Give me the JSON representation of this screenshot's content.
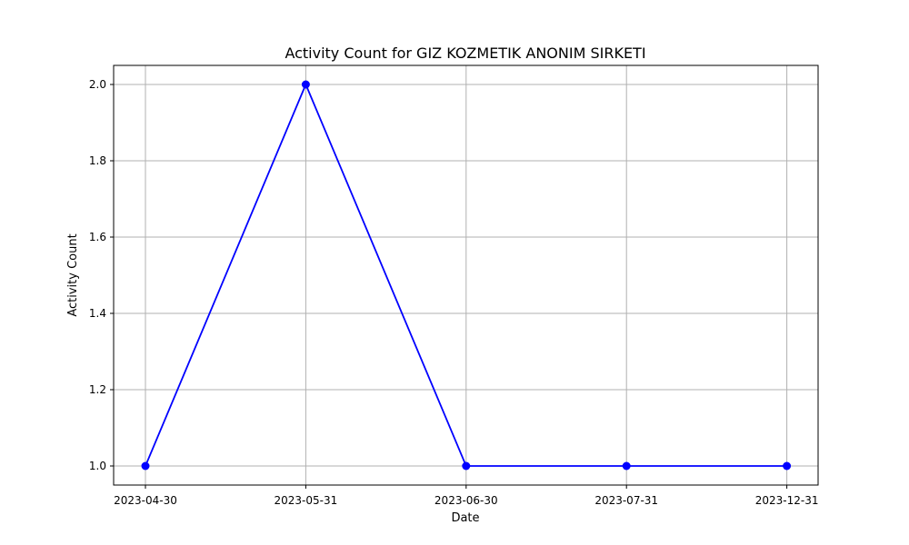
{
  "chart_data": {
    "type": "line",
    "title": "Activity Count for GIZ KOZMETIK ANONIM SIRKETI",
    "xlabel": "Date",
    "ylabel": "Activity Count",
    "categories": [
      "2023-04-30",
      "2023-05-31",
      "2023-06-30",
      "2023-07-31",
      "2023-12-31"
    ],
    "series": [
      {
        "values": [
          1,
          2,
          1,
          1,
          1
        ],
        "color": "#0000ff",
        "marker": "circle"
      }
    ],
    "ylim": [
      0.95,
      2.05
    ],
    "yticks": [
      1.0,
      1.2,
      1.4,
      1.6,
      1.8,
      2.0
    ],
    "ytick_labels": [
      "1.0",
      "1.2",
      "1.4",
      "1.6",
      "1.8",
      "2.0"
    ],
    "grid": true,
    "legend": false
  }
}
